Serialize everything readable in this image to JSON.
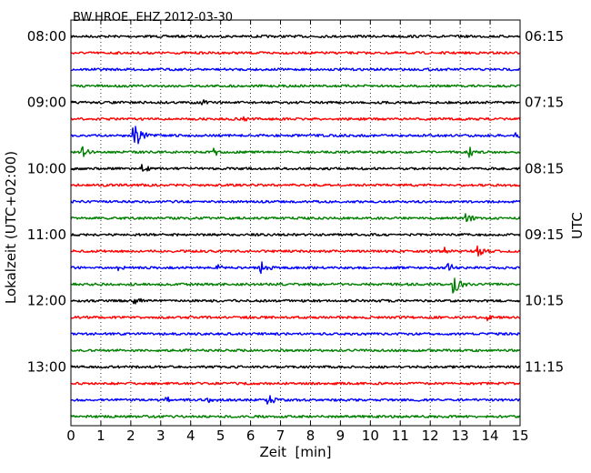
{
  "chart_data": {
    "type": "line",
    "title": "BW.HROE..EHZ 2012-03-30",
    "xlabel": "Zeit  [min]",
    "ylabel_left": "Lokalzeit (UTC+02:00)",
    "ylabel_right": "UTC",
    "xlim": [
      0,
      15
    ],
    "x_ticks": [
      "0",
      "1",
      "2",
      "3",
      "4",
      "5",
      "6",
      "7",
      "8",
      "9",
      "10",
      "11",
      "12",
      "13",
      "14",
      "15"
    ],
    "left_ticks": [
      "08:00",
      "09:00",
      "10:00",
      "11:00",
      "12:00",
      "13:00"
    ],
    "right_ticks": [
      "06:15",
      "07:15",
      "08:15",
      "09:15",
      "10:15",
      "11:15"
    ],
    "tick_trace_interval": 4,
    "grid": true,
    "trace_colors": [
      "#000000",
      "#ff0000",
      "#0000ff",
      "#008000"
    ],
    "trace_count": 24,
    "events": [
      {
        "trace": 4,
        "t": 4.4,
        "amp": 4
      },
      {
        "trace": 5,
        "t": 5.8,
        "amp": 3
      },
      {
        "trace": 6,
        "t": 2.1,
        "amp": 16
      },
      {
        "trace": 6,
        "t": 2.4,
        "amp": 5
      },
      {
        "trace": 6,
        "t": 14.8,
        "amp": 4
      },
      {
        "trace": 7,
        "t": 0.4,
        "amp": 6
      },
      {
        "trace": 7,
        "t": 4.8,
        "amp": 5
      },
      {
        "trace": 7,
        "t": 13.3,
        "amp": 6
      },
      {
        "trace": 8,
        "t": 2.4,
        "amp": 5
      },
      {
        "trace": 9,
        "t": 11.2,
        "amp": 3
      },
      {
        "trace": 11,
        "t": 13.2,
        "amp": 7
      },
      {
        "trace": 13,
        "t": 12.5,
        "amp": 5
      },
      {
        "trace": 13,
        "t": 13.6,
        "amp": 7
      },
      {
        "trace": 14,
        "t": 1.6,
        "amp": 4
      },
      {
        "trace": 14,
        "t": 4.9,
        "amp": 4
      },
      {
        "trace": 14,
        "t": 6.3,
        "amp": 9
      },
      {
        "trace": 14,
        "t": 12.6,
        "amp": 6
      },
      {
        "trace": 15,
        "t": 12.8,
        "amp": 12
      },
      {
        "trace": 16,
        "t": 2.1,
        "amp": 6
      },
      {
        "trace": 17,
        "t": 13.9,
        "amp": 4
      },
      {
        "trace": 22,
        "t": 3.2,
        "amp": 5
      },
      {
        "trace": 22,
        "t": 4.6,
        "amp": 5
      },
      {
        "trace": 22,
        "t": 6.6,
        "amp": 6
      }
    ]
  }
}
